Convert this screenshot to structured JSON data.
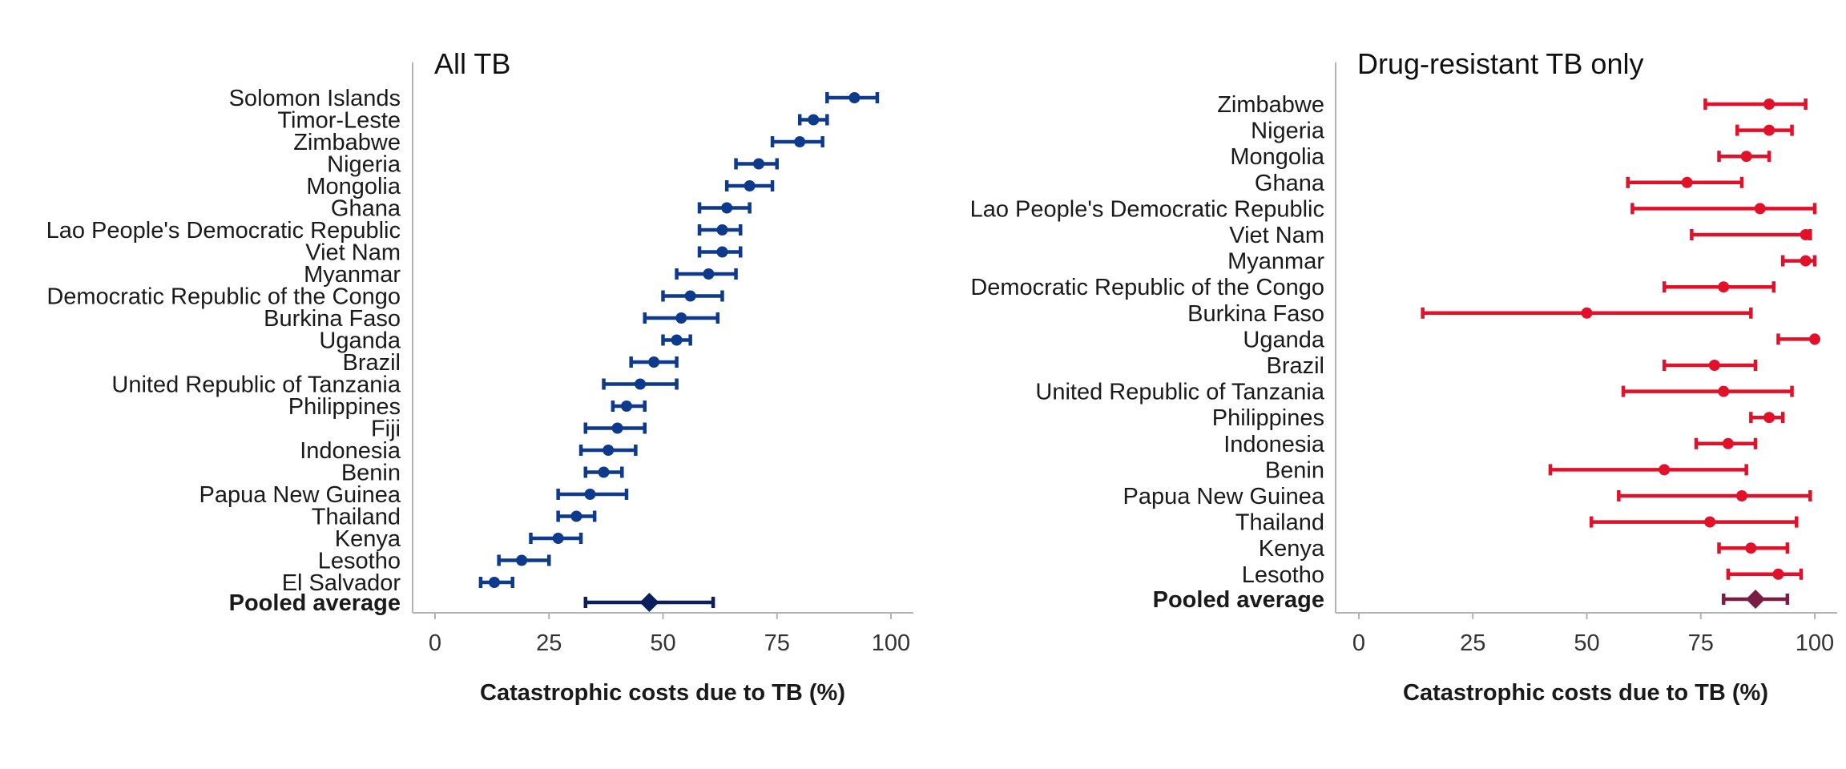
{
  "chart_data": [
    {
      "type": "forest",
      "title": "All TB",
      "xlabel": "Catastrophic costs due to TB (%)",
      "xlim": [
        0,
        100
      ],
      "xticks": [
        "0",
        "25",
        "50",
        "75",
        "100"
      ],
      "color": "#0d3a8c",
      "pooled_color": "#0b1f5c",
      "rows": [
        {
          "label": "Solomon Islands",
          "est": 92,
          "lo": 86,
          "hi": 97
        },
        {
          "label": "Timor-Leste",
          "est": 83,
          "lo": 80,
          "hi": 86
        },
        {
          "label": "Zimbabwe",
          "est": 80,
          "lo": 74,
          "hi": 85
        },
        {
          "label": "Nigeria",
          "est": 71,
          "lo": 66,
          "hi": 75
        },
        {
          "label": "Mongolia",
          "est": 69,
          "lo": 64,
          "hi": 74
        },
        {
          "label": "Ghana",
          "est": 64,
          "lo": 58,
          "hi": 69
        },
        {
          "label": "Lao People's Democratic Republic",
          "est": 63,
          "lo": 58,
          "hi": 67
        },
        {
          "label": "Viet Nam",
          "est": 63,
          "lo": 58,
          "hi": 67
        },
        {
          "label": "Myanmar",
          "est": 60,
          "lo": 53,
          "hi": 66
        },
        {
          "label": "Democratic Republic of the Congo",
          "est": 56,
          "lo": 50,
          "hi": 63
        },
        {
          "label": "Burkina Faso",
          "est": 54,
          "lo": 46,
          "hi": 62
        },
        {
          "label": "Uganda",
          "est": 53,
          "lo": 50,
          "hi": 56
        },
        {
          "label": "Brazil",
          "est": 48,
          "lo": 43,
          "hi": 53
        },
        {
          "label": "United Republic of Tanzania",
          "est": 45,
          "lo": 37,
          "hi": 53
        },
        {
          "label": "Philippines",
          "est": 42,
          "lo": 39,
          "hi": 46
        },
        {
          "label": "Fiji",
          "est": 40,
          "lo": 33,
          "hi": 46
        },
        {
          "label": "Indonesia",
          "est": 38,
          "lo": 32,
          "hi": 44
        },
        {
          "label": "Benin",
          "est": 37,
          "lo": 33,
          "hi": 41
        },
        {
          "label": "Papua New Guinea",
          "est": 34,
          "lo": 27,
          "hi": 42
        },
        {
          "label": "Thailand",
          "est": 31,
          "lo": 27,
          "hi": 35
        },
        {
          "label": "Kenya",
          "est": 27,
          "lo": 21,
          "hi": 32
        },
        {
          "label": "Lesotho",
          "est": 19,
          "lo": 14,
          "hi": 25
        },
        {
          "label": "El Salvador",
          "est": 13,
          "lo": 10,
          "hi": 17
        }
      ],
      "pooled": {
        "label": "Pooled average",
        "est": 47,
        "lo": 33,
        "hi": 61
      }
    },
    {
      "type": "forest",
      "title": "Drug-resistant TB only",
      "xlabel": "Catastrophic costs due to TB (%)",
      "xlim": [
        0,
        100
      ],
      "xticks": [
        "0",
        "25",
        "50",
        "75",
        "100"
      ],
      "color": "#e3102a",
      "pooled_color": "#7a1c44",
      "rows": [
        {
          "label": "Zimbabwe",
          "est": 90,
          "lo": 76,
          "hi": 98
        },
        {
          "label": "Nigeria",
          "est": 90,
          "lo": 83,
          "hi": 95
        },
        {
          "label": "Mongolia",
          "est": 85,
          "lo": 79,
          "hi": 90
        },
        {
          "label": "Ghana",
          "est": 72,
          "lo": 59,
          "hi": 84
        },
        {
          "label": "Lao People's Democratic Republic",
          "est": 88,
          "lo": 60,
          "hi": 100
        },
        {
          "label": "Viet Nam",
          "est": 98,
          "lo": 73,
          "hi": 99
        },
        {
          "label": "Myanmar",
          "est": 98,
          "lo": 93,
          "hi": 100
        },
        {
          "label": "Democratic Republic of the Congo",
          "est": 80,
          "lo": 67,
          "hi": 91
        },
        {
          "label": "Burkina Faso",
          "est": 50,
          "lo": 14,
          "hi": 86
        },
        {
          "label": "Uganda",
          "est": 100,
          "lo": 92,
          "hi": 100
        },
        {
          "label": "Brazil",
          "est": 78,
          "lo": 67,
          "hi": 87
        },
        {
          "label": "United Republic of Tanzania",
          "est": 80,
          "lo": 58,
          "hi": 95
        },
        {
          "label": "Philippines",
          "est": 90,
          "lo": 86,
          "hi": 93
        },
        {
          "label": "Indonesia",
          "est": 81,
          "lo": 74,
          "hi": 87
        },
        {
          "label": "Benin",
          "est": 67,
          "lo": 42,
          "hi": 85
        },
        {
          "label": "Papua New Guinea",
          "est": 84,
          "lo": 57,
          "hi": 99
        },
        {
          "label": "Thailand",
          "est": 77,
          "lo": 51,
          "hi": 96
        },
        {
          "label": "Kenya",
          "est": 86,
          "lo": 79,
          "hi": 94
        },
        {
          "label": "Lesotho",
          "est": 92,
          "lo": 81,
          "hi": 97
        }
      ],
      "pooled": {
        "label": "Pooled average",
        "est": 87,
        "lo": 80,
        "hi": 94
      }
    }
  ]
}
